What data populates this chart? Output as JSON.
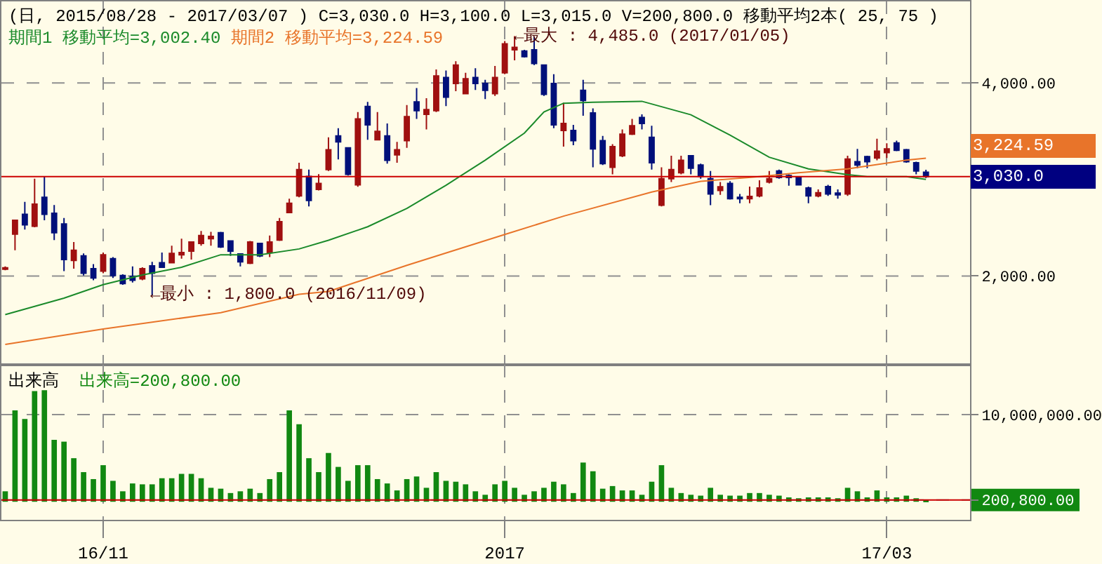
{
  "chart_data": [
    {
      "type": "candlestick",
      "title": "(日, 2015/08/28 - 2017/03/07 ) C=3,030.0 H=3,100.0 L=3,015.0 V=200,800.0 移動平均2本( 25, 75 )",
      "categories": [
        null,
        null,
        null,
        null,
        null,
        null,
        null,
        null,
        null,
        null,
        null,
        null,
        null,
        null,
        null,
        null,
        null,
        null,
        null,
        null,
        null,
        null,
        null,
        null,
        null,
        null,
        null,
        null,
        null,
        null,
        null,
        null,
        null,
        null,
        null,
        null,
        null,
        null,
        null,
        null,
        null,
        null,
        null,
        null,
        null,
        null,
        null,
        null,
        null,
        null,
        null,
        null,
        null,
        null,
        null,
        null,
        null,
        null,
        null,
        null,
        null,
        null,
        null,
        null,
        null,
        null,
        null,
        null,
        null,
        null,
        null,
        null,
        null,
        null,
        null,
        null,
        null,
        null,
        null,
        null,
        null,
        null,
        null,
        null,
        null,
        null,
        null,
        null,
        null,
        null,
        null,
        null,
        null,
        null,
        null
      ],
      "ohlc": [
        [
          2070,
          2100,
          2060,
          2085
        ],
        [
          2434,
          2577,
          2266,
          2577
        ],
        [
          2639,
          2768,
          2481,
          2529
        ],
        [
          2515,
          3007,
          2505,
          2744
        ],
        [
          2816,
          3031,
          2577,
          2639
        ],
        [
          2649,
          2735,
          2371,
          2448
        ],
        [
          2539,
          2601,
          2051,
          2171
        ],
        [
          2161,
          2352,
          2075,
          2266
        ],
        [
          2209,
          2233,
          2004,
          2028
        ],
        [
          2075,
          2123,
          1956,
          1980
        ],
        [
          2051,
          2243,
          2028,
          2219
        ],
        [
          2180,
          2195,
          1980,
          2004
        ],
        [
          2004,
          2018,
          1908,
          1922
        ],
        [
          1994,
          2099,
          1932,
          1956
        ],
        [
          1970,
          2090,
          1956,
          2075
        ],
        [
          2104,
          2147,
          1800,
          2028
        ],
        [
          2137,
          2243,
          2090,
          2090
        ],
        [
          2137,
          2314,
          2132,
          2233
        ],
        [
          2219,
          2386,
          2180,
          2243
        ],
        [
          2257,
          2352,
          2171,
          2352
        ],
        [
          2338,
          2467,
          2314,
          2419
        ],
        [
          2386,
          2457,
          2314,
          2410
        ],
        [
          2448,
          2457,
          2290,
          2300
        ],
        [
          2362,
          2362,
          2209,
          2257
        ],
        [
          2228,
          2228,
          2099,
          2147
        ],
        [
          2132,
          2362,
          2123,
          2352
        ],
        [
          2338,
          2338,
          2195,
          2209
        ],
        [
          2243,
          2419,
          2195,
          2352
        ],
        [
          2372,
          2601,
          2362,
          2563
        ],
        [
          2658,
          2801,
          2649,
          2754
        ],
        [
          2830,
          3174,
          2816,
          3102
        ],
        [
          3031,
          3102,
          2720,
          2782
        ],
        [
          2897,
          3055,
          2887,
          2959
        ],
        [
          3102,
          3437,
          3088,
          3308
        ],
        [
          3451,
          3532,
          3207,
          3389
        ],
        [
          3327,
          3327,
          3040,
          3054
        ],
        [
          2944,
          3699,
          2925,
          3627
        ],
        [
          3756,
          3804,
          3412,
          3565
        ],
        [
          3412,
          3699,
          3412,
          3498
        ],
        [
          3451,
          3580,
          3164,
          3198
        ],
        [
          3255,
          3389,
          3174,
          3307
        ],
        [
          3403,
          3771,
          3327,
          3651
        ],
        [
          3804,
          3948,
          3627,
          3713
        ],
        [
          3675,
          3842,
          3518,
          3723
        ],
        [
          3713,
          4139,
          3699,
          4072
        ],
        [
          4057,
          4129,
          3761,
          3852
        ],
        [
          3995,
          4225,
          3914,
          4186
        ],
        [
          3890,
          4105,
          3881,
          4043
        ],
        [
          4057,
          4153,
          3928,
          3995
        ],
        [
          3995,
          4033,
          3833,
          3924
        ],
        [
          3890,
          4177,
          3866,
          4057
        ],
        [
          4105,
          4435,
          4091,
          4406
        ],
        [
          4344,
          4485,
          4234,
          4368
        ],
        [
          4330,
          4344,
          4263,
          4272
        ],
        [
          4344,
          4480,
          4186,
          4201
        ],
        [
          4186,
          4186,
          3866,
          3881
        ],
        [
          3995,
          4091,
          3532,
          3565
        ],
        [
          3508,
          3795,
          3341,
          3580
        ],
        [
          3508,
          3565,
          3355,
          3403
        ],
        [
          3924,
          4033,
          3661,
          3818
        ],
        [
          3690,
          3737,
          3126,
          3317
        ],
        [
          3403,
          3451,
          3150,
          3164
        ],
        [
          3126,
          3365,
          3054,
          3341
        ],
        [
          3245,
          3518,
          3231,
          3470
        ],
        [
          3470,
          3627,
          3460,
          3556
        ],
        [
          3642,
          3675,
          3518,
          3580
        ],
        [
          3436,
          3556,
          3102,
          3174
        ],
        [
          2734,
          3126,
          2720,
          3007
        ],
        [
          3007,
          3246,
          2973,
          3102
        ],
        [
          3069,
          3246,
          3054,
          3198
        ],
        [
          3246,
          3246,
          3054,
          3117
        ],
        [
          3150,
          3164,
          3007,
          3031
        ],
        [
          3007,
          3088,
          2734,
          2849
        ],
        [
          2887,
          2973,
          2840,
          2925
        ],
        [
          2959,
          2983,
          2792,
          2801
        ],
        [
          2816,
          2849,
          2754,
          2801
        ],
        [
          2801,
          2926,
          2754,
          2825
        ],
        [
          2830,
          2992,
          2816,
          2911
        ],
        [
          2973,
          3088,
          2959,
          3007
        ],
        [
          3088,
          3102,
          3007,
          3021
        ],
        [
          3040,
          3054,
          2935,
          3021
        ],
        [
          3021,
          3031,
          2945,
          2945
        ],
        [
          2911,
          2926,
          2754,
          2830
        ],
        [
          2830,
          2897,
          2816,
          2863
        ],
        [
          2926,
          2945,
          2830,
          2849
        ],
        [
          2859,
          2897,
          2801,
          2840
        ],
        [
          2849,
          3246,
          2830,
          3212
        ],
        [
          3184,
          3317,
          3117,
          3150
        ],
        [
          3236,
          3246,
          3117,
          3184
        ],
        [
          3222,
          3422,
          3198,
          3293
        ],
        [
          3279,
          3375,
          3222,
          3317
        ],
        [
          3379,
          3403,
          3293,
          3303
        ],
        [
          3308,
          3317,
          3174,
          3184
        ],
        [
          3174,
          3184,
          3054,
          3088
        ],
        [
          3075,
          3100,
          3015,
          3030
        ]
      ],
      "series": [
        {
          "name": "期間1 移動平均=3,002.40",
          "type": "line",
          "color": "#1a8a2a",
          "values": [
            1600,
            null,
            null,
            null,
            null,
            null,
            1770,
            null,
            null,
            null,
            1910,
            null,
            null,
            null,
            2010,
            null,
            null,
            null,
            2090,
            null,
            null,
            null,
            2220,
            null,
            null,
            null,
            2220,
            null,
            null,
            null,
            2280,
            null,
            null,
            2370,
            null,
            null,
            null,
            2510,
            null,
            null,
            null,
            2700,
            null,
            null,
            null,
            2940,
            null,
            null,
            null,
            3200,
            null,
            null,
            null,
            3480,
            null,
            3700,
            null,
            3790,
            null,
            null,
            3800,
            null,
            null,
            null,
            null,
            3810,
            null,
            null,
            null,
            null,
            3670,
            null,
            null,
            null,
            3460,
            null,
            null,
            null,
            3230,
            null,
            null,
            null,
            3110,
            null,
            null,
            null,
            3050,
            null,
            3030,
            null,
            null,
            null,
            3030,
            null,
            3000
          ]
        },
        {
          "name": "期間2 移動平均=3,224.59",
          "type": "line",
          "color": "#e8742a",
          "values": [
            1290,
            null,
            null,
            null,
            null,
            null,
            null,
            null,
            null,
            null,
            1450,
            null,
            null,
            null,
            null,
            null,
            null,
            null,
            null,
            null,
            null,
            null,
            1620,
            null,
            null,
            null,
            null,
            null,
            null,
            null,
            1810,
            null,
            null,
            1840,
            null,
            null,
            null,
            null,
            null,
            null,
            null,
            2110,
            null,
            null,
            null,
            null,
            null,
            null,
            null,
            null,
            null,
            2430,
            null,
            null,
            null,
            null,
            null,
            2620,
            null,
            null,
            null,
            null,
            null,
            null,
            null,
            null,
            2870,
            null,
            null,
            null,
            null,
            2980,
            null,
            null,
            null,
            null,
            null,
            3030,
            null,
            null,
            null,
            3070,
            null,
            null,
            null,
            null,
            3110,
            null,
            null,
            null,
            null,
            null,
            3200,
            null,
            3220
          ]
        }
      ],
      "annotations": [
        "←最大 : 4,485.0 (2017/01/05)",
        "←最小 : 1,800.0 (2016/11/09)",
        "3,224.59"
      ],
      "ref_lines": [
        {
          "axis": "y",
          "value": 3030,
          "label": "3,030.0",
          "color": "#cc0000"
        }
      ],
      "ylim": [
        1080,
        4845
      ],
      "yticks": [
        {
          "value": 2000,
          "label": "2,000.00"
        },
        {
          "value": 4000,
          "label": "4,000.00"
        }
      ],
      "grid": true,
      "tick_labels": "y"
    },
    {
      "type": "bar",
      "title": "出来高",
      "categories": [
        null,
        null,
        null,
        null,
        null,
        null,
        null,
        null,
        null,
        null,
        "16/11",
        null,
        null,
        null,
        null,
        null,
        null,
        null,
        null,
        null,
        null,
        null,
        null,
        null,
        null,
        null,
        null,
        null,
        null,
        null,
        null,
        null,
        null,
        null,
        null,
        null,
        null,
        null,
        null,
        null,
        null,
        null,
        null,
        null,
        null,
        null,
        null,
        null,
        null,
        null,
        null,
        "2017",
        null,
        null,
        null,
        null,
        null,
        null,
        null,
        null,
        null,
        null,
        null,
        null,
        null,
        null,
        null,
        null,
        null,
        null,
        null,
        null,
        null,
        null,
        null,
        null,
        null,
        null,
        null,
        null,
        null,
        null,
        null,
        null,
        null,
        null,
        null,
        null,
        null,
        null,
        "17/03",
        null,
        null,
        null,
        null
      ],
      "series": [
        {
          "name": "出来高=200,800.00",
          "color": "#118811",
          "values": [
            1200000,
            10500000,
            9500000,
            12700000,
            12800000,
            7100000,
            6900000,
            5000000,
            3400000,
            2600000,
            4200000,
            2400000,
            1200000,
            2100000,
            2000000,
            2000000,
            2700000,
            2700000,
            3200000,
            3200000,
            2700000,
            1600000,
            1500000,
            1000000,
            1200000,
            1500000,
            1000000,
            2600000,
            3400000,
            10500000,
            8900000,
            5000000,
            3400000,
            5600000,
            4000000,
            2400000,
            4200000,
            4200000,
            2600000,
            2100000,
            1300000,
            2600000,
            2900000,
            1600000,
            3400000,
            2400000,
            2300000,
            2000000,
            1200000,
            800000,
            2000000,
            2400000,
            1600000,
            800000,
            1200000,
            1600000,
            2300000,
            2000000,
            1000000,
            4500000,
            3500000,
            1500000,
            1800000,
            1300000,
            1300000,
            800000,
            2300000,
            4200000,
            1600000,
            1000000,
            800000,
            700000,
            1600000,
            800000,
            700000,
            700000,
            1000000,
            1000000,
            800000,
            700000,
            500000,
            400000,
            500000,
            500000,
            500000,
            400000,
            1600000,
            1200000,
            500000,
            1300000,
            500000,
            500000,
            700000,
            400000,
            200800
          ]
        }
      ],
      "ref_lines": [
        {
          "axis": "y",
          "value": 200800,
          "color": "#cc0000"
        }
      ],
      "ylim": [
        -2070000,
        15730000
      ],
      "yticks": [
        {
          "value": 200800,
          "label": "200,800.00"
        },
        {
          "value": 10000000,
          "label": "10,000,000.00"
        }
      ],
      "grid": true
    }
  ]
}
